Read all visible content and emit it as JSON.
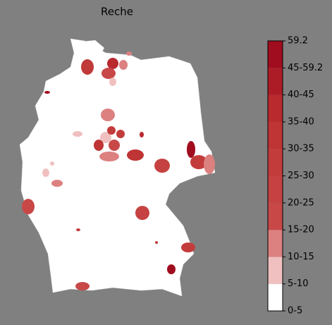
{
  "title": "Reche",
  "colorbar": {
    "labels": [
      "0-5",
      "5-10",
      "10-15",
      "15-20",
      "20-25",
      "25-30",
      "30-35",
      "35-40",
      "40-45",
      "45-59.2",
      "59.2"
    ],
    "colors": [
      "#ffffff",
      "#f0c0c0",
      "#dc8080",
      "#c84848",
      "#c64242",
      "#c33c3c",
      "#bf3434",
      "#b82a2e",
      "#ac1c26",
      "#a00d1f"
    ]
  }
}
